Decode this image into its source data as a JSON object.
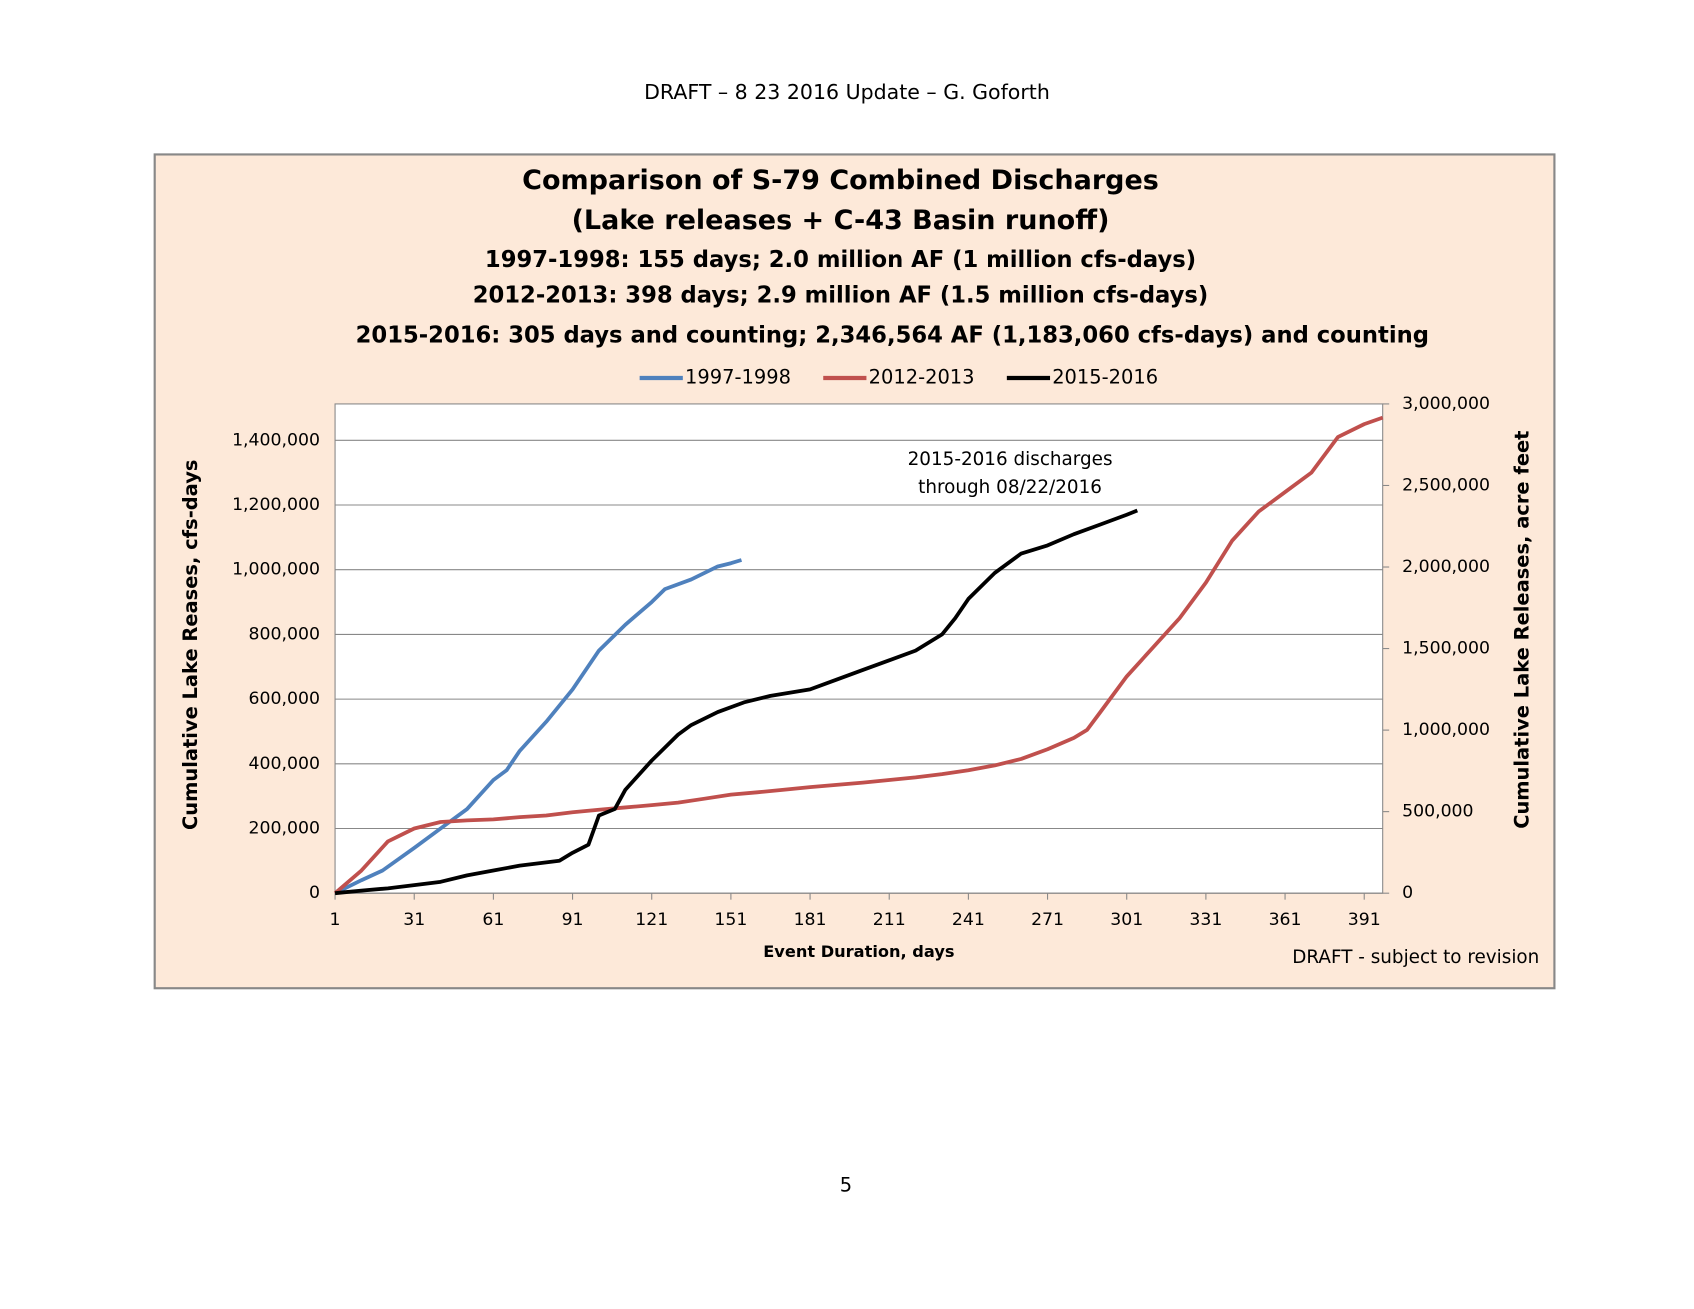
{
  "header": "DRAFT – 8 23 2016 Update – G. Goforth",
  "page_number": "5",
  "chart_data": {
    "type": "line",
    "title": [
      "Comparison of S-79 Combined Discharges",
      "(Lake releases + C-43 Basin runoff)"
    ],
    "subtitles": [
      "1997-1998: 155 days; 2.0 million AF (1 million cfs-days)",
      "2012-2013: 398 days; 2.9 million AF (1.5 million cfs-days)",
      "2015-2016: 305 days and counting; 2,346,564 AF (1,183,060 cfs-days) and counting"
    ],
    "xlabel": "Event Duration, days",
    "ylabel": "Cumulative Lake Reases, cfs-days",
    "y2label": "Cumulative Lake Releases, acre feet",
    "annotation": [
      "2015-2016 discharges",
      "through 08/22/2016"
    ],
    "footnote": "DRAFT - subject to revision",
    "xlim": [
      1,
      398
    ],
    "xticks": [
      1,
      31,
      61,
      91,
      121,
      151,
      181,
      211,
      241,
      271,
      301,
      331,
      361,
      391
    ],
    "ylim": [
      0,
      1512500
    ],
    "yticks": [
      0,
      {
        "value": 200000,
        "label": "200,000"
      },
      {
        "value": 400000,
        "label": "400,000"
      },
      {
        "value": 600000,
        "label": "600,000"
      },
      {
        "value": 800000,
        "label": "800,000"
      },
      {
        "value": 1000000,
        "label": "1,000,000"
      },
      {
        "value": 1200000,
        "label": "1,200,000"
      },
      {
        "value": 1400000,
        "label": "1,400,000"
      }
    ],
    "y2lim": [
      0,
      3000000
    ],
    "y2ticks": [
      0,
      {
        "value": 500000,
        "label": "500,000"
      },
      {
        "value": 1000000,
        "label": "1,000,000"
      },
      {
        "value": 1500000,
        "label": "1,500,000"
      },
      {
        "value": 2000000,
        "label": "2,000,000"
      },
      {
        "value": 2500000,
        "label": "2,500,000"
      },
      {
        "value": 3000000,
        "label": "3,000,000"
      }
    ],
    "grid": true,
    "legend": "top",
    "series": [
      {
        "name": "1997-1998",
        "color": "#4f81bd",
        "x": [
          1,
          11,
          19,
          31,
          41,
          51,
          61,
          66,
          71,
          81,
          91,
          101,
          111,
          121,
          126,
          136,
          146,
          151,
          155
        ],
        "values": [
          0,
          40000,
          70000,
          140000,
          200000,
          260000,
          350000,
          380000,
          440000,
          530000,
          630000,
          750000,
          830000,
          900000,
          940000,
          970000,
          1010000,
          1020000,
          1030000
        ]
      },
      {
        "name": "2012-2013",
        "color": "#c0504d",
        "x": [
          1,
          11,
          21,
          31,
          41,
          51,
          61,
          71,
          81,
          91,
          101,
          111,
          121,
          131,
          141,
          151,
          161,
          171,
          181,
          191,
          201,
          211,
          221,
          231,
          241,
          251,
          261,
          271,
          281,
          286,
          291,
          301,
          311,
          321,
          331,
          341,
          351,
          361,
          371,
          381,
          391,
          398
        ],
        "values": [
          0,
          70000,
          160000,
          200000,
          220000,
          225000,
          228000,
          235000,
          240000,
          250000,
          258000,
          265000,
          272000,
          280000,
          292000,
          305000,
          312000,
          320000,
          328000,
          335000,
          342000,
          350000,
          358000,
          368000,
          380000,
          395000,
          415000,
          445000,
          480000,
          505000,
          560000,
          670000,
          760000,
          850000,
          960000,
          1090000,
          1180000,
          1240000,
          1300000,
          1410000,
          1450000,
          1470000
        ]
      },
      {
        "name": "2015-2016",
        "color": "#000000",
        "x": [
          1,
          11,
          21,
          31,
          41,
          51,
          61,
          71,
          81,
          86,
          91,
          97,
          101,
          107,
          111,
          121,
          131,
          136,
          146,
          156,
          166,
          181,
          191,
          201,
          211,
          221,
          231,
          236,
          241,
          251,
          261,
          271,
          281,
          291,
          301,
          305
        ],
        "values": [
          0,
          8000,
          15000,
          25000,
          35000,
          55000,
          70000,
          85000,
          95000,
          100000,
          125000,
          150000,
          240000,
          260000,
          320000,
          410000,
          490000,
          520000,
          560000,
          590000,
          610000,
          630000,
          660000,
          690000,
          720000,
          750000,
          800000,
          850000,
          910000,
          990000,
          1050000,
          1075000,
          1110000,
          1140000,
          1170000,
          1183060
        ]
      }
    ]
  }
}
